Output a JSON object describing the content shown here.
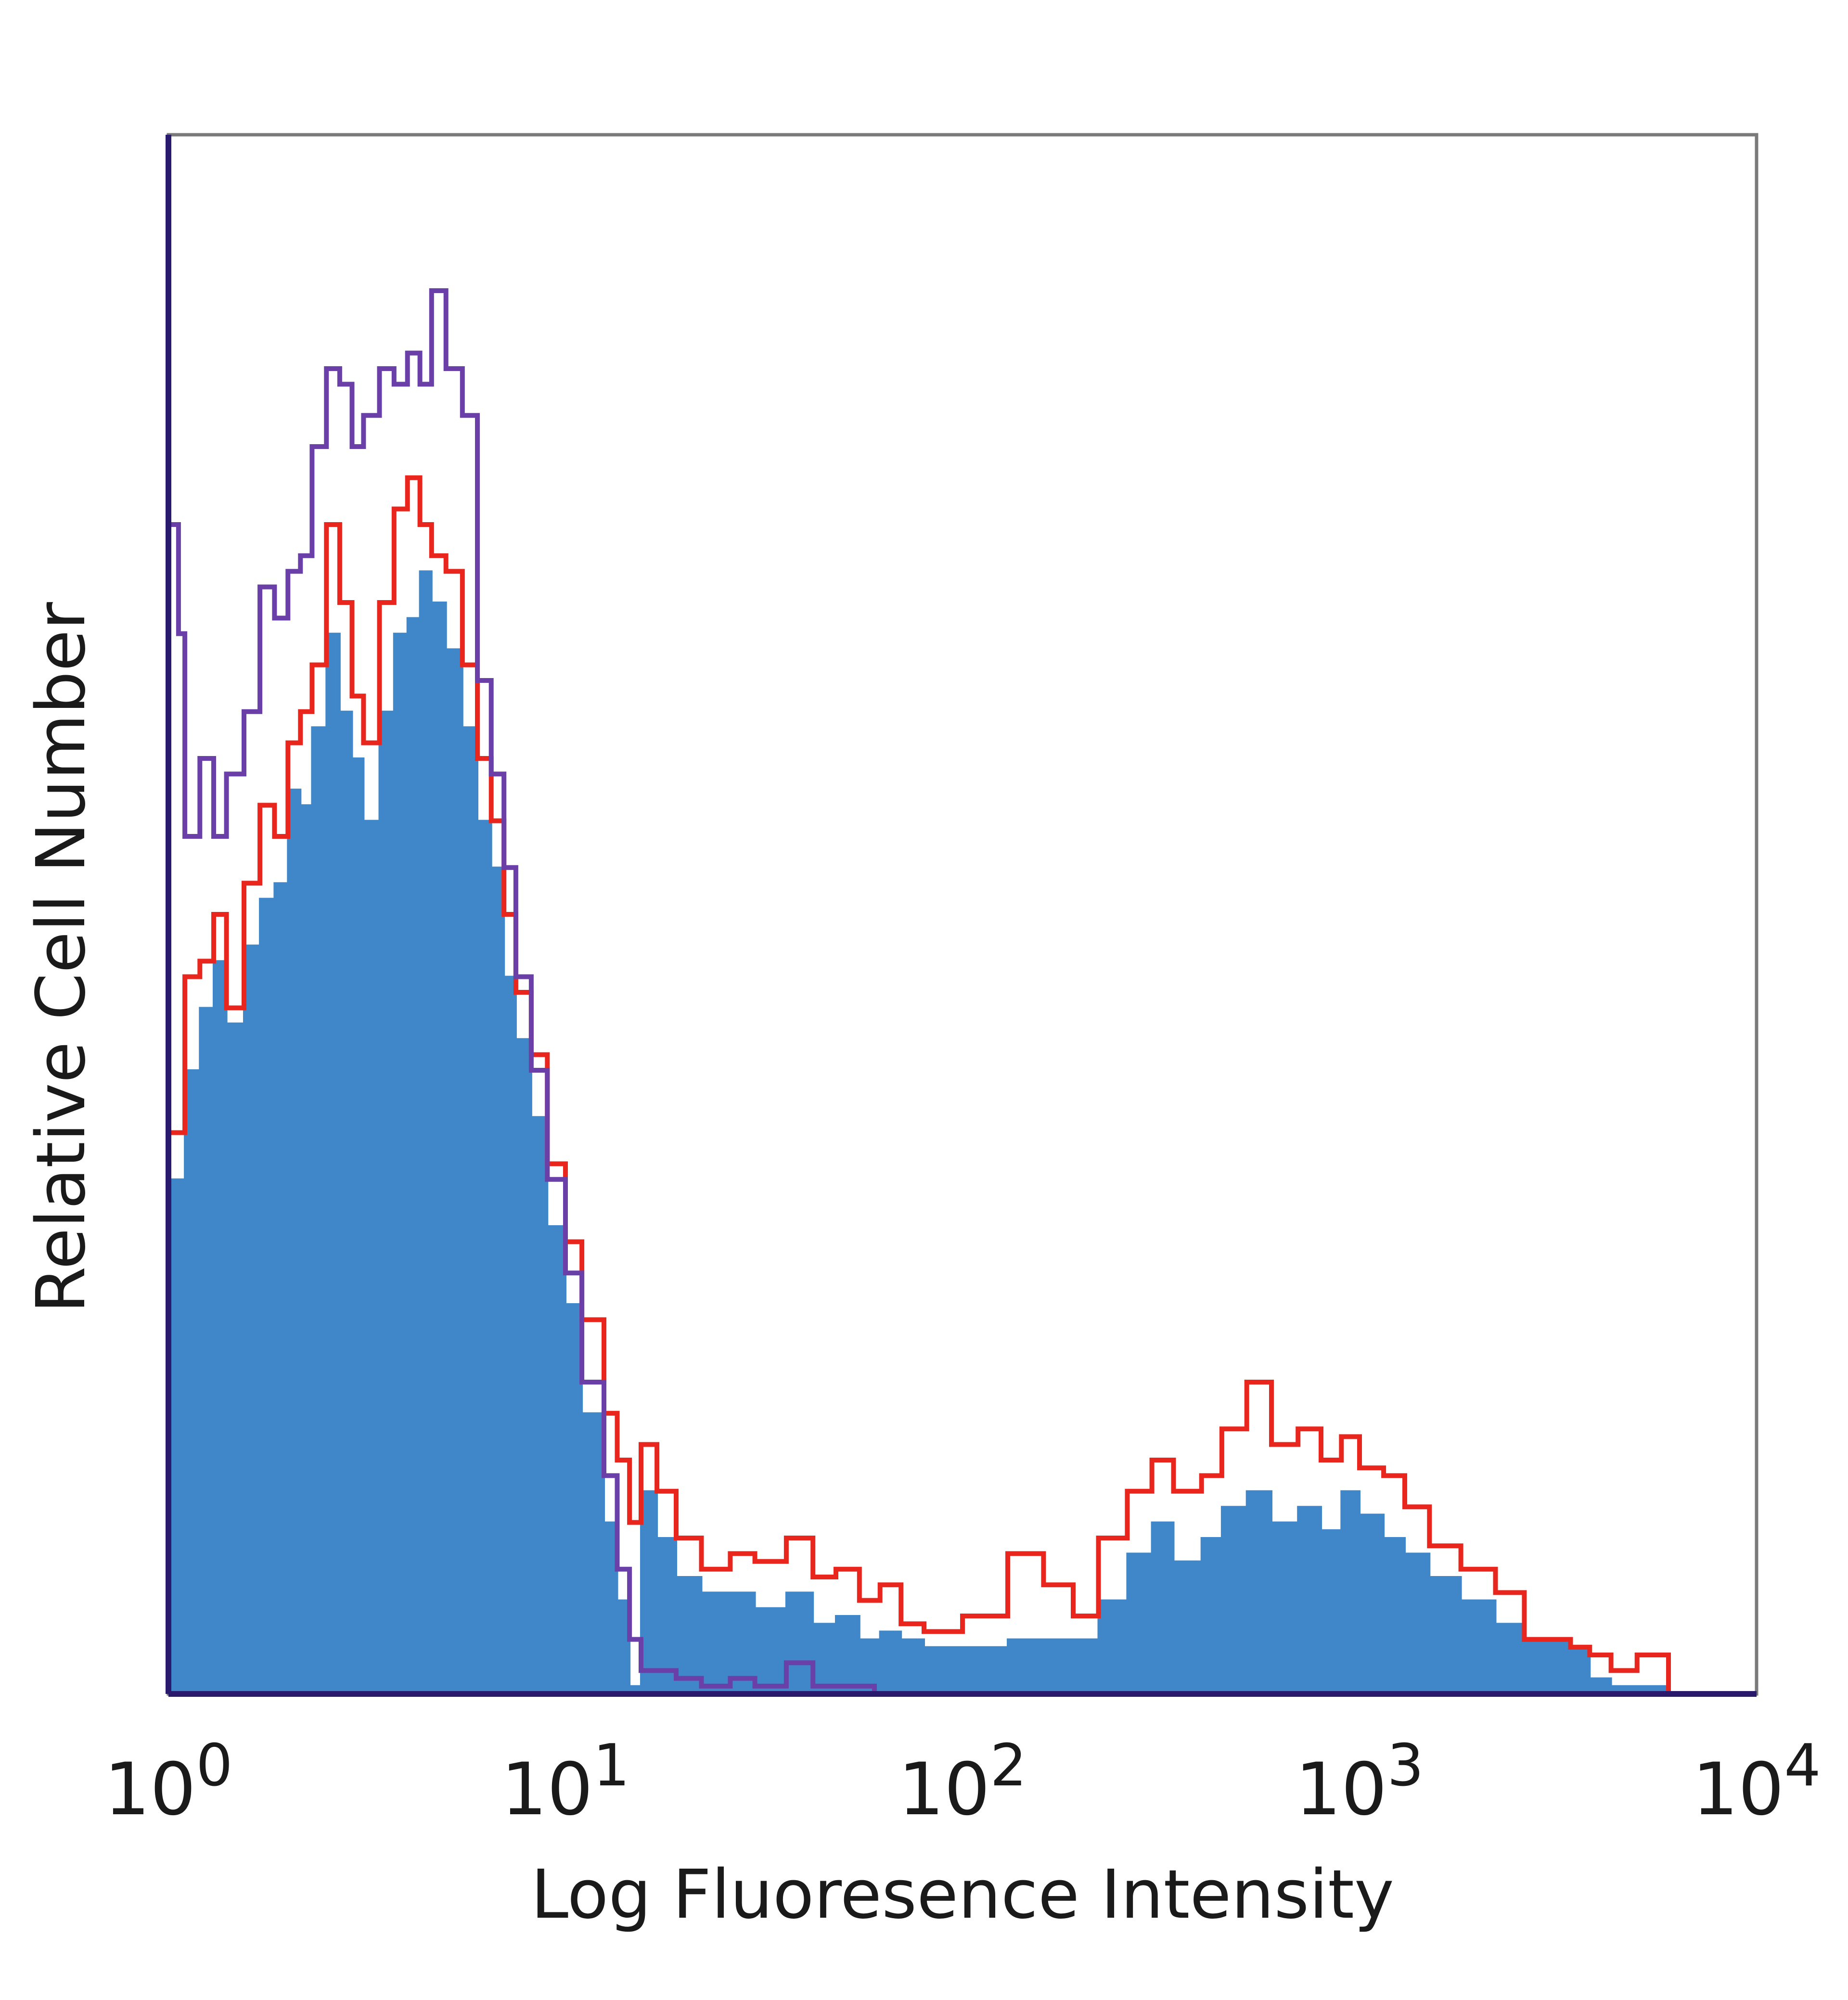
{
  "chart_data": {
    "type": "area",
    "title": "",
    "xlabel": "Log Fluoresence Intensity",
    "ylabel": "Relative Cell Number",
    "x_scale": "log",
    "xlim": [
      1,
      10000
    ],
    "ylim": [
      0,
      100
    ],
    "grid": false,
    "x_ticks": [
      {
        "value": 1,
        "base": "10",
        "exp": "0"
      },
      {
        "value": 10,
        "base": "10",
        "exp": "1"
      },
      {
        "value": 100,
        "base": "10",
        "exp": "2"
      },
      {
        "value": 1000,
        "base": "10",
        "exp": "3"
      },
      {
        "value": 10000,
        "base": "10",
        "exp": "4"
      }
    ],
    "series": [
      {
        "role": "filled",
        "color": "#3f87c8",
        "points": [
          [
            1.0,
            33
          ],
          [
            1.1,
            40
          ],
          [
            1.2,
            44
          ],
          [
            1.3,
            47
          ],
          [
            1.4,
            43
          ],
          [
            1.55,
            48
          ],
          [
            1.7,
            51
          ],
          [
            1.85,
            52
          ],
          [
            2.0,
            58
          ],
          [
            2.15,
            57
          ],
          [
            2.3,
            62
          ],
          [
            2.5,
            68
          ],
          [
            2.7,
            63
          ],
          [
            2.9,
            60
          ],
          [
            3.1,
            56
          ],
          [
            3.4,
            63
          ],
          [
            3.7,
            68
          ],
          [
            4.0,
            69
          ],
          [
            4.3,
            72
          ],
          [
            4.6,
            70
          ],
          [
            5.0,
            67
          ],
          [
            5.5,
            62
          ],
          [
            6.0,
            56
          ],
          [
            6.5,
            53
          ],
          [
            7.0,
            46
          ],
          [
            7.5,
            42
          ],
          [
            8.2,
            37
          ],
          [
            9.0,
            30
          ],
          [
            10.0,
            25
          ],
          [
            11.0,
            18
          ],
          [
            12.5,
            11
          ],
          [
            13.5,
            6
          ],
          [
            14.5,
            0.5
          ],
          [
            15.5,
            13
          ],
          [
            17,
            10
          ],
          [
            19,
            7.5
          ],
          [
            22,
            6.5
          ],
          [
            26,
            6.5
          ],
          [
            30,
            5.5
          ],
          [
            36,
            6.5
          ],
          [
            42,
            4.5
          ],
          [
            48,
            5
          ],
          [
            55,
            3.5
          ],
          [
            62,
            4
          ],
          [
            70,
            3.5
          ],
          [
            80,
            3
          ],
          [
            100,
            3
          ],
          [
            130,
            3.5
          ],
          [
            160,
            3.5
          ],
          [
            190,
            3.5
          ],
          [
            220,
            6
          ],
          [
            260,
            9
          ],
          [
            300,
            11
          ],
          [
            340,
            8.5
          ],
          [
            400,
            10
          ],
          [
            450,
            12
          ],
          [
            520,
            13
          ],
          [
            600,
            11
          ],
          [
            700,
            12
          ],
          [
            800,
            10.5
          ],
          [
            900,
            13
          ],
          [
            1000,
            11.5
          ],
          [
            1150,
            10
          ],
          [
            1300,
            9
          ],
          [
            1500,
            7.5
          ],
          [
            1800,
            6
          ],
          [
            2200,
            4.5
          ],
          [
            2600,
            3.5
          ],
          [
            3000,
            3.5
          ],
          [
            3400,
            3
          ],
          [
            3800,
            1
          ],
          [
            4300,
            0.5
          ],
          [
            6000,
            0
          ],
          [
            10000,
            0
          ]
        ]
      },
      {
        "role": "outline",
        "color": "#e8261e",
        "points": [
          [
            1.0,
            36
          ],
          [
            1.1,
            46
          ],
          [
            1.2,
            47
          ],
          [
            1.3,
            50
          ],
          [
            1.4,
            44
          ],
          [
            1.55,
            52
          ],
          [
            1.7,
            57
          ],
          [
            1.85,
            55
          ],
          [
            2.0,
            61
          ],
          [
            2.15,
            63
          ],
          [
            2.3,
            66
          ],
          [
            2.5,
            75
          ],
          [
            2.7,
            70
          ],
          [
            2.9,
            64
          ],
          [
            3.1,
            61
          ],
          [
            3.4,
            70
          ],
          [
            3.7,
            76
          ],
          [
            4.0,
            78
          ],
          [
            4.3,
            75
          ],
          [
            4.6,
            73
          ],
          [
            5.0,
            72
          ],
          [
            5.5,
            66
          ],
          [
            6.0,
            60
          ],
          [
            6.5,
            56
          ],
          [
            7.0,
            50
          ],
          [
            7.5,
            45
          ],
          [
            8.2,
            41
          ],
          [
            9.0,
            34
          ],
          [
            10.0,
            29
          ],
          [
            11.0,
            24
          ],
          [
            12.5,
            18
          ],
          [
            13.5,
            15
          ],
          [
            14.5,
            11
          ],
          [
            15.5,
            16
          ],
          [
            17,
            13
          ],
          [
            19,
            10
          ],
          [
            22,
            8
          ],
          [
            26,
            9
          ],
          [
            30,
            8.5
          ],
          [
            36,
            10
          ],
          [
            42,
            7.5
          ],
          [
            48,
            8
          ],
          [
            55,
            6
          ],
          [
            62,
            7
          ],
          [
            70,
            4.5
          ],
          [
            80,
            4
          ],
          [
            100,
            5
          ],
          [
            130,
            9
          ],
          [
            160,
            7
          ],
          [
            190,
            5
          ],
          [
            220,
            10
          ],
          [
            260,
            13
          ],
          [
            300,
            15
          ],
          [
            340,
            13
          ],
          [
            400,
            14
          ],
          [
            450,
            17
          ],
          [
            520,
            20
          ],
          [
            600,
            16
          ],
          [
            700,
            17
          ],
          [
            800,
            15
          ],
          [
            900,
            16.5
          ],
          [
            1000,
            14.5
          ],
          [
            1150,
            14
          ],
          [
            1300,
            12
          ],
          [
            1500,
            9.5
          ],
          [
            1800,
            8
          ],
          [
            2200,
            6.5
          ],
          [
            2600,
            3.5
          ],
          [
            3000,
            3.5
          ],
          [
            3400,
            3
          ],
          [
            3800,
            2.5
          ],
          [
            4300,
            1.5
          ],
          [
            5000,
            2.5
          ],
          [
            6000,
            0
          ],
          [
            10000,
            0
          ]
        ]
      },
      {
        "role": "outline",
        "color": "#6a3fa8",
        "points": [
          [
            1.0,
            75
          ],
          [
            1.06,
            68
          ],
          [
            1.1,
            55
          ],
          [
            1.2,
            60
          ],
          [
            1.3,
            55
          ],
          [
            1.4,
            59
          ],
          [
            1.55,
            63
          ],
          [
            1.7,
            71
          ],
          [
            1.85,
            69
          ],
          [
            2.0,
            72
          ],
          [
            2.15,
            73
          ],
          [
            2.3,
            80
          ],
          [
            2.5,
            85
          ],
          [
            2.7,
            84
          ],
          [
            2.9,
            80
          ],
          [
            3.1,
            82
          ],
          [
            3.4,
            85
          ],
          [
            3.7,
            84
          ],
          [
            4.0,
            86
          ],
          [
            4.3,
            84
          ],
          [
            4.6,
            90
          ],
          [
            5.0,
            85
          ],
          [
            5.5,
            82
          ],
          [
            6.0,
            65
          ],
          [
            6.5,
            59
          ],
          [
            7.0,
            53
          ],
          [
            7.5,
            46
          ],
          [
            8.2,
            40
          ],
          [
            9.0,
            33
          ],
          [
            10.0,
            27
          ],
          [
            11.0,
            20
          ],
          [
            12.5,
            14
          ],
          [
            13.5,
            8
          ],
          [
            14.5,
            3.5
          ],
          [
            15.5,
            1.5
          ],
          [
            17,
            1.5
          ],
          [
            19,
            1
          ],
          [
            22,
            0.5
          ],
          [
            26,
            1
          ],
          [
            30,
            0.5
          ],
          [
            36,
            2
          ],
          [
            42,
            0.5
          ],
          [
            60,
            0
          ],
          [
            10000,
            0
          ]
        ]
      }
    ]
  }
}
